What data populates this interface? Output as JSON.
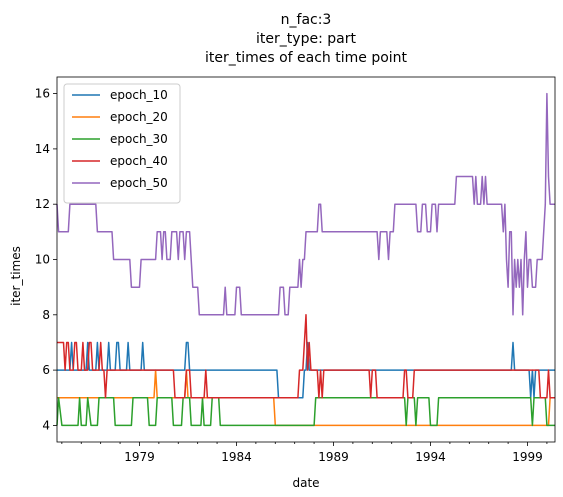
{
  "chart_data": {
    "type": "line",
    "title_lines": [
      "n_fac:3",
      "iter_type: part",
      "iter_times of each time point"
    ],
    "xlabel": "date",
    "ylabel": "iter_times",
    "xlim": [
      "1974-10",
      "2000-06"
    ],
    "ylim": [
      3.4,
      16.6
    ],
    "x_ticks": [
      "1979",
      "1984",
      "1989",
      "1994",
      "1999"
    ],
    "y_ticks": [
      4,
      6,
      8,
      10,
      12,
      14,
      16
    ],
    "grid": false,
    "legend_position": "upper-left",
    "colors": {
      "epoch_10": "#1f77b4",
      "epoch_20": "#ff7f0e",
      "epoch_30": "#2ca02c",
      "epoch_40": "#d62728",
      "epoch_50": "#9467bd"
    },
    "series": [
      {
        "name": "epoch_10",
        "values": [
          [
            "1974-10",
            6
          ],
          [
            "1975-06",
            6
          ],
          [
            "1975-07",
            7
          ],
          [
            "1975-08",
            6
          ],
          [
            "1976-04",
            6
          ],
          [
            "1976-05",
            7
          ],
          [
            "1976-06",
            6
          ],
          [
            "1976-10",
            6
          ],
          [
            "1976-11",
            7
          ],
          [
            "1976-12",
            6
          ],
          [
            "1977-05",
            6
          ],
          [
            "1977-06",
            7
          ],
          [
            "1977-07",
            6
          ],
          [
            "1977-10",
            6
          ],
          [
            "1977-11",
            7
          ],
          [
            "1977-12",
            7
          ],
          [
            "1978-01",
            6
          ],
          [
            "1978-05",
            6
          ],
          [
            "1978-06",
            7
          ],
          [
            "1978-07",
            6
          ],
          [
            "1979-02",
            6
          ],
          [
            "1979-03",
            7
          ],
          [
            "1979-04",
            6
          ],
          [
            "1981-05",
            6
          ],
          [
            "1981-06",
            7
          ],
          [
            "1981-07",
            7
          ],
          [
            "1981-08",
            6
          ],
          [
            "1986-02",
            6
          ],
          [
            "1986-03",
            5
          ],
          [
            "1987-06",
            5
          ],
          [
            "1987-07",
            6
          ],
          [
            "1987-08",
            6
          ],
          [
            "1987-09",
            7
          ],
          [
            "1987-10",
            6
          ],
          [
            "1998-03",
            6
          ],
          [
            "1998-04",
            7
          ],
          [
            "1998-05",
            6
          ],
          [
            "1999-02",
            6
          ],
          [
            "1999-03",
            5
          ],
          [
            "1999-04",
            6
          ],
          [
            "1999-05",
            5
          ],
          [
            "1999-06",
            6
          ],
          [
            "2000-06",
            6
          ]
        ]
      },
      {
        "name": "epoch_20",
        "values": [
          [
            "1974-10",
            5
          ],
          [
            "1979-10",
            5
          ],
          [
            "1979-11",
            6
          ],
          [
            "1979-12",
            5
          ],
          [
            "1981-05",
            5
          ],
          [
            "1981-06",
            6
          ],
          [
            "1981-07",
            5
          ],
          [
            "1985-12",
            5
          ],
          [
            "1986-01",
            4
          ],
          [
            "2000-02",
            4
          ],
          [
            "2000-03",
            5
          ],
          [
            "2000-06",
            5
          ]
        ]
      },
      {
        "name": "epoch_30",
        "values": [
          [
            "1974-10",
            4
          ],
          [
            "1974-11",
            5
          ],
          [
            "1975-01",
            4
          ],
          [
            "1975-11",
            4
          ],
          [
            "1975-12",
            5
          ],
          [
            "1976-01",
            4
          ],
          [
            "1976-04",
            4
          ],
          [
            "1976-05",
            5
          ],
          [
            "1976-07",
            4
          ],
          [
            "1976-11",
            4
          ],
          [
            "1976-12",
            5
          ],
          [
            "1977-09",
            5
          ],
          [
            "1977-10",
            4
          ],
          [
            "1978-08",
            4
          ],
          [
            "1978-09",
            5
          ],
          [
            "1979-06",
            5
          ],
          [
            "1979-07",
            4
          ],
          [
            "1979-11",
            4
          ],
          [
            "1979-12",
            5
          ],
          [
            "1980-09",
            5
          ],
          [
            "1980-10",
            4
          ],
          [
            "1981-03",
            4
          ],
          [
            "1981-04",
            5
          ],
          [
            "1981-08",
            5
          ],
          [
            "1981-09",
            4
          ],
          [
            "1982-03",
            4
          ],
          [
            "1982-04",
            5
          ],
          [
            "1982-05",
            4
          ],
          [
            "1982-09",
            4
          ],
          [
            "1982-10",
            5
          ],
          [
            "1983-02",
            5
          ],
          [
            "1983-03",
            4
          ],
          [
            "1988-01",
            4
          ],
          [
            "1988-02",
            5
          ],
          [
            "1992-09",
            5
          ],
          [
            "1992-10",
            4
          ],
          [
            "1992-11",
            5
          ],
          [
            "1993-03",
            5
          ],
          [
            "1993-04",
            4
          ],
          [
            "1993-05",
            5
          ],
          [
            "1993-12",
            5
          ],
          [
            "1994-01",
            4
          ],
          [
            "1994-05",
            4
          ],
          [
            "1994-06",
            5
          ],
          [
            "1999-03",
            5
          ],
          [
            "1999-04",
            4
          ],
          [
            "1999-05",
            5
          ],
          [
            "1999-12",
            5
          ],
          [
            "2000-01",
            4
          ],
          [
            "2000-06",
            4
          ]
        ]
      },
      {
        "name": "epoch_40",
        "values": [
          [
            "1974-10",
            7
          ],
          [
            "1975-02",
            7
          ],
          [
            "1975-03",
            6
          ],
          [
            "1975-04",
            7
          ],
          [
            "1975-05",
            7
          ],
          [
            "1975-06",
            6
          ],
          [
            "1975-08",
            6
          ],
          [
            "1975-09",
            7
          ],
          [
            "1975-10",
            7
          ],
          [
            "1975-11",
            6
          ],
          [
            "1976-01",
            6
          ],
          [
            "1976-02",
            7
          ],
          [
            "1976-03",
            6
          ],
          [
            "1976-05",
            6
          ],
          [
            "1976-06",
            7
          ],
          [
            "1976-07",
            7
          ],
          [
            "1976-08",
            6
          ],
          [
            "1976-12",
            6
          ],
          [
            "1977-01",
            7
          ],
          [
            "1977-02",
            6
          ],
          [
            "1977-03",
            6
          ],
          [
            "1977-04",
            5
          ],
          [
            "1977-05",
            6
          ],
          [
            "1980-10",
            6
          ],
          [
            "1980-11",
            5
          ],
          [
            "1981-05",
            5
          ],
          [
            "1981-06",
            6
          ],
          [
            "1981-08",
            6
          ],
          [
            "1981-09",
            5
          ],
          [
            "1982-05",
            5
          ],
          [
            "1982-06",
            6
          ],
          [
            "1982-07",
            5
          ],
          [
            "1987-03",
            5
          ],
          [
            "1987-04",
            6
          ],
          [
            "1987-06",
            6
          ],
          [
            "1987-07",
            7
          ],
          [
            "1987-08",
            8
          ],
          [
            "1987-09",
            6
          ],
          [
            "1987-10",
            7
          ],
          [
            "1987-11",
            6
          ],
          [
            "1988-03",
            6
          ],
          [
            "1988-04",
            5
          ],
          [
            "1988-05",
            6
          ],
          [
            "1988-06",
            5
          ],
          [
            "1988-07",
            6
          ],
          [
            "1990-11",
            6
          ],
          [
            "1990-12",
            5
          ],
          [
            "1991-01",
            6
          ],
          [
            "1991-03",
            6
          ],
          [
            "1991-04",
            5
          ],
          [
            "1992-08",
            5
          ],
          [
            "1992-09",
            6
          ],
          [
            "1992-10",
            6
          ],
          [
            "1992-11",
            5
          ],
          [
            "1993-02",
            5
          ],
          [
            "1993-03",
            6
          ],
          [
            "1999-08",
            6
          ],
          [
            "1999-09",
            5
          ],
          [
            "2000-01",
            5
          ],
          [
            "2000-02",
            6
          ],
          [
            "2000-03",
            5
          ],
          [
            "2000-06",
            5
          ]
        ]
      },
      {
        "name": "epoch_50",
        "values": [
          [
            "1974-10",
            12
          ],
          [
            "1974-11",
            11
          ],
          [
            "1975-05",
            11
          ],
          [
            "1975-06",
            12
          ],
          [
            "1976-10",
            12
          ],
          [
            "1976-11",
            11
          ],
          [
            "1977-08",
            11
          ],
          [
            "1977-09",
            10
          ],
          [
            "1978-07",
            10
          ],
          [
            "1978-08",
            9
          ],
          [
            "1979-01",
            9
          ],
          [
            "1979-02",
            10
          ],
          [
            "1979-11",
            10
          ],
          [
            "1979-12",
            11
          ],
          [
            "1980-02",
            11
          ],
          [
            "1980-03",
            10
          ],
          [
            "1980-04",
            11
          ],
          [
            "1980-05",
            11
          ],
          [
            "1980-06",
            10
          ],
          [
            "1980-08",
            10
          ],
          [
            "1980-09",
            11
          ],
          [
            "1980-12",
            11
          ],
          [
            "1981-01",
            10
          ],
          [
            "1981-02",
            11
          ],
          [
            "1981-04",
            11
          ],
          [
            "1981-05",
            10
          ],
          [
            "1981-06",
            11
          ],
          [
            "1981-08",
            11
          ],
          [
            "1981-09",
            10
          ],
          [
            "1981-10",
            9
          ],
          [
            "1982-01",
            9
          ],
          [
            "1982-02",
            8
          ],
          [
            "1983-05",
            8
          ],
          [
            "1983-06",
            9
          ],
          [
            "1983-07",
            8
          ],
          [
            "1983-12",
            8
          ],
          [
            "1984-01",
            9
          ],
          [
            "1984-03",
            9
          ],
          [
            "1984-04",
            8
          ],
          [
            "1986-03",
            8
          ],
          [
            "1986-04",
            9
          ],
          [
            "1986-06",
            9
          ],
          [
            "1986-07",
            8
          ],
          [
            "1986-09",
            8
          ],
          [
            "1986-10",
            9
          ],
          [
            "1987-03",
            9
          ],
          [
            "1987-04",
            10
          ],
          [
            "1987-05",
            9
          ],
          [
            "1987-06",
            10
          ],
          [
            "1987-07",
            10
          ],
          [
            "1987-08",
            11
          ],
          [
            "1988-03",
            11
          ],
          [
            "1988-04",
            12
          ],
          [
            "1988-05",
            12
          ],
          [
            "1988-06",
            11
          ],
          [
            "1991-04",
            11
          ],
          [
            "1991-05",
            10
          ],
          [
            "1991-06",
            11
          ],
          [
            "1991-10",
            11
          ],
          [
            "1991-11",
            10
          ],
          [
            "1991-12",
            11
          ],
          [
            "1992-02",
            11
          ],
          [
            "1992-03",
            12
          ],
          [
            "1993-04",
            12
          ],
          [
            "1993-05",
            11
          ],
          [
            "1993-07",
            11
          ],
          [
            "1993-08",
            12
          ],
          [
            "1993-10",
            12
          ],
          [
            "1993-11",
            11
          ],
          [
            "1994-01",
            11
          ],
          [
            "1994-02",
            12
          ],
          [
            "1994-04",
            12
          ],
          [
            "1994-05",
            11
          ],
          [
            "1994-06",
            12
          ],
          [
            "1995-04",
            12
          ],
          [
            "1995-05",
            13
          ],
          [
            "1996-03",
            13
          ],
          [
            "1996-04",
            12
          ],
          [
            "1996-05",
            13
          ],
          [
            "1996-06",
            12
          ],
          [
            "1996-08",
            12
          ],
          [
            "1996-09",
            13
          ],
          [
            "1996-10",
            12
          ],
          [
            "1996-11",
            13
          ],
          [
            "1996-12",
            12
          ],
          [
            "1997-09",
            12
          ],
          [
            "1997-10",
            11
          ],
          [
            "1997-11",
            12
          ],
          [
            "1997-12",
            10
          ],
          [
            "1998-01",
            9
          ],
          [
            "1998-02",
            11
          ],
          [
            "1998-03",
            11
          ],
          [
            "1998-04",
            8
          ],
          [
            "1998-05",
            10
          ],
          [
            "1998-06",
            9
          ],
          [
            "1998-07",
            10
          ],
          [
            "1998-08",
            9
          ],
          [
            "1998-09",
            10
          ],
          [
            "1998-10",
            8
          ],
          [
            "1998-11",
            10
          ],
          [
            "1998-12",
            11
          ],
          [
            "1999-01",
            9
          ],
          [
            "1999-02",
            10
          ],
          [
            "1999-03",
            10
          ],
          [
            "1999-04",
            9
          ],
          [
            "1999-06",
            9
          ],
          [
            "1999-07",
            10
          ],
          [
            "1999-10",
            10
          ],
          [
            "1999-11",
            11
          ],
          [
            "1999-12",
            12
          ],
          [
            "2000-01",
            16
          ],
          [
            "2000-02",
            13
          ],
          [
            "2000-03",
            12
          ],
          [
            "2000-06",
            12
          ]
        ]
      }
    ]
  }
}
